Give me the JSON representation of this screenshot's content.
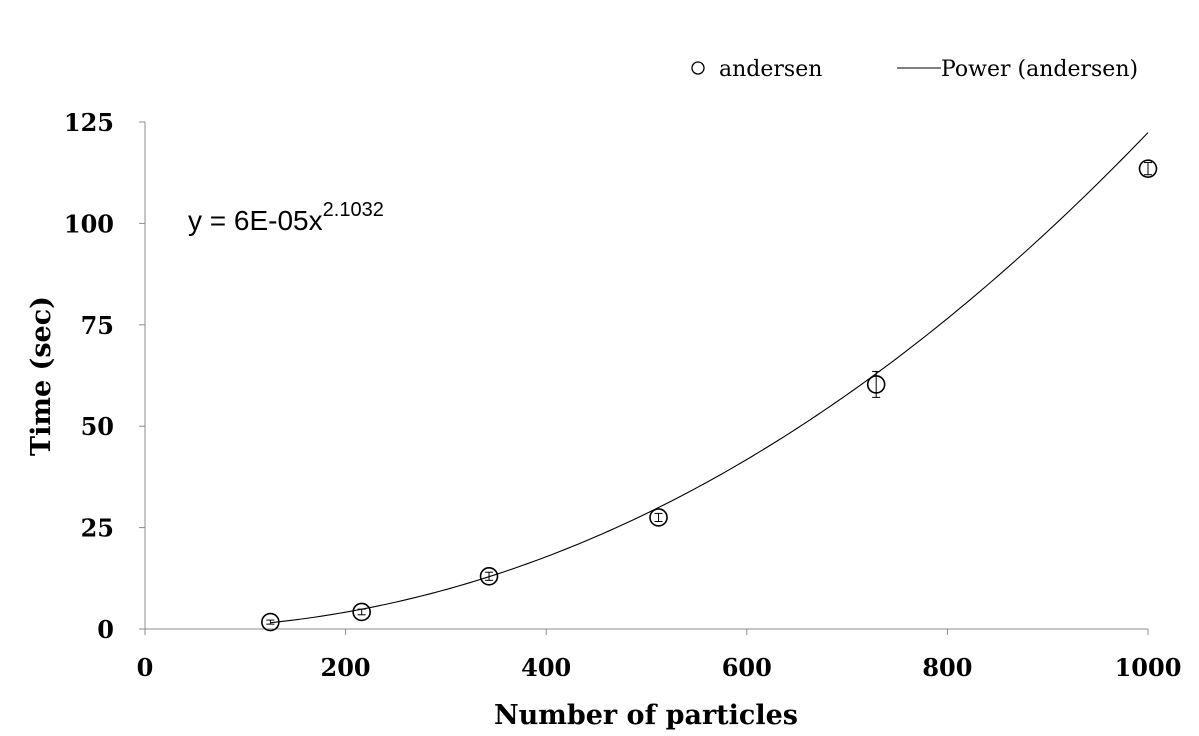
{
  "chart_data": {
    "type": "scatter",
    "xlabel": "Number of particles",
    "ylabel": "Time (sec)",
    "xlim": [
      0,
      1000
    ],
    "ylim": [
      0,
      125
    ],
    "x_ticks": [
      "0",
      "200",
      "400",
      "600",
      "800",
      "1000"
    ],
    "y_ticks": [
      "0",
      "25",
      "50",
      "75",
      "100",
      "125"
    ],
    "grid": false,
    "legend_position": "top-right",
    "series": [
      {
        "name": "andersen",
        "marker": "open-circle",
        "x": [
          125,
          216,
          343,
          512,
          729,
          1000
        ],
        "y": [
          1.7,
          4.2,
          13.0,
          27.5,
          60.3,
          113.5
        ],
        "error": [
          0.5,
          0.7,
          1.0,
          1.0,
          3.2,
          1.5
        ]
      }
    ],
    "trendline": {
      "name": "Power (andersen)",
      "type": "power",
      "a": 6e-05,
      "b": 2.1032,
      "x_range": [
        125,
        1000
      ],
      "equation_base": "y = 6E-05x",
      "equation_exponent": "2.1032"
    },
    "colors": {
      "axis": "#8c8c8c",
      "mark": "#000000"
    }
  }
}
